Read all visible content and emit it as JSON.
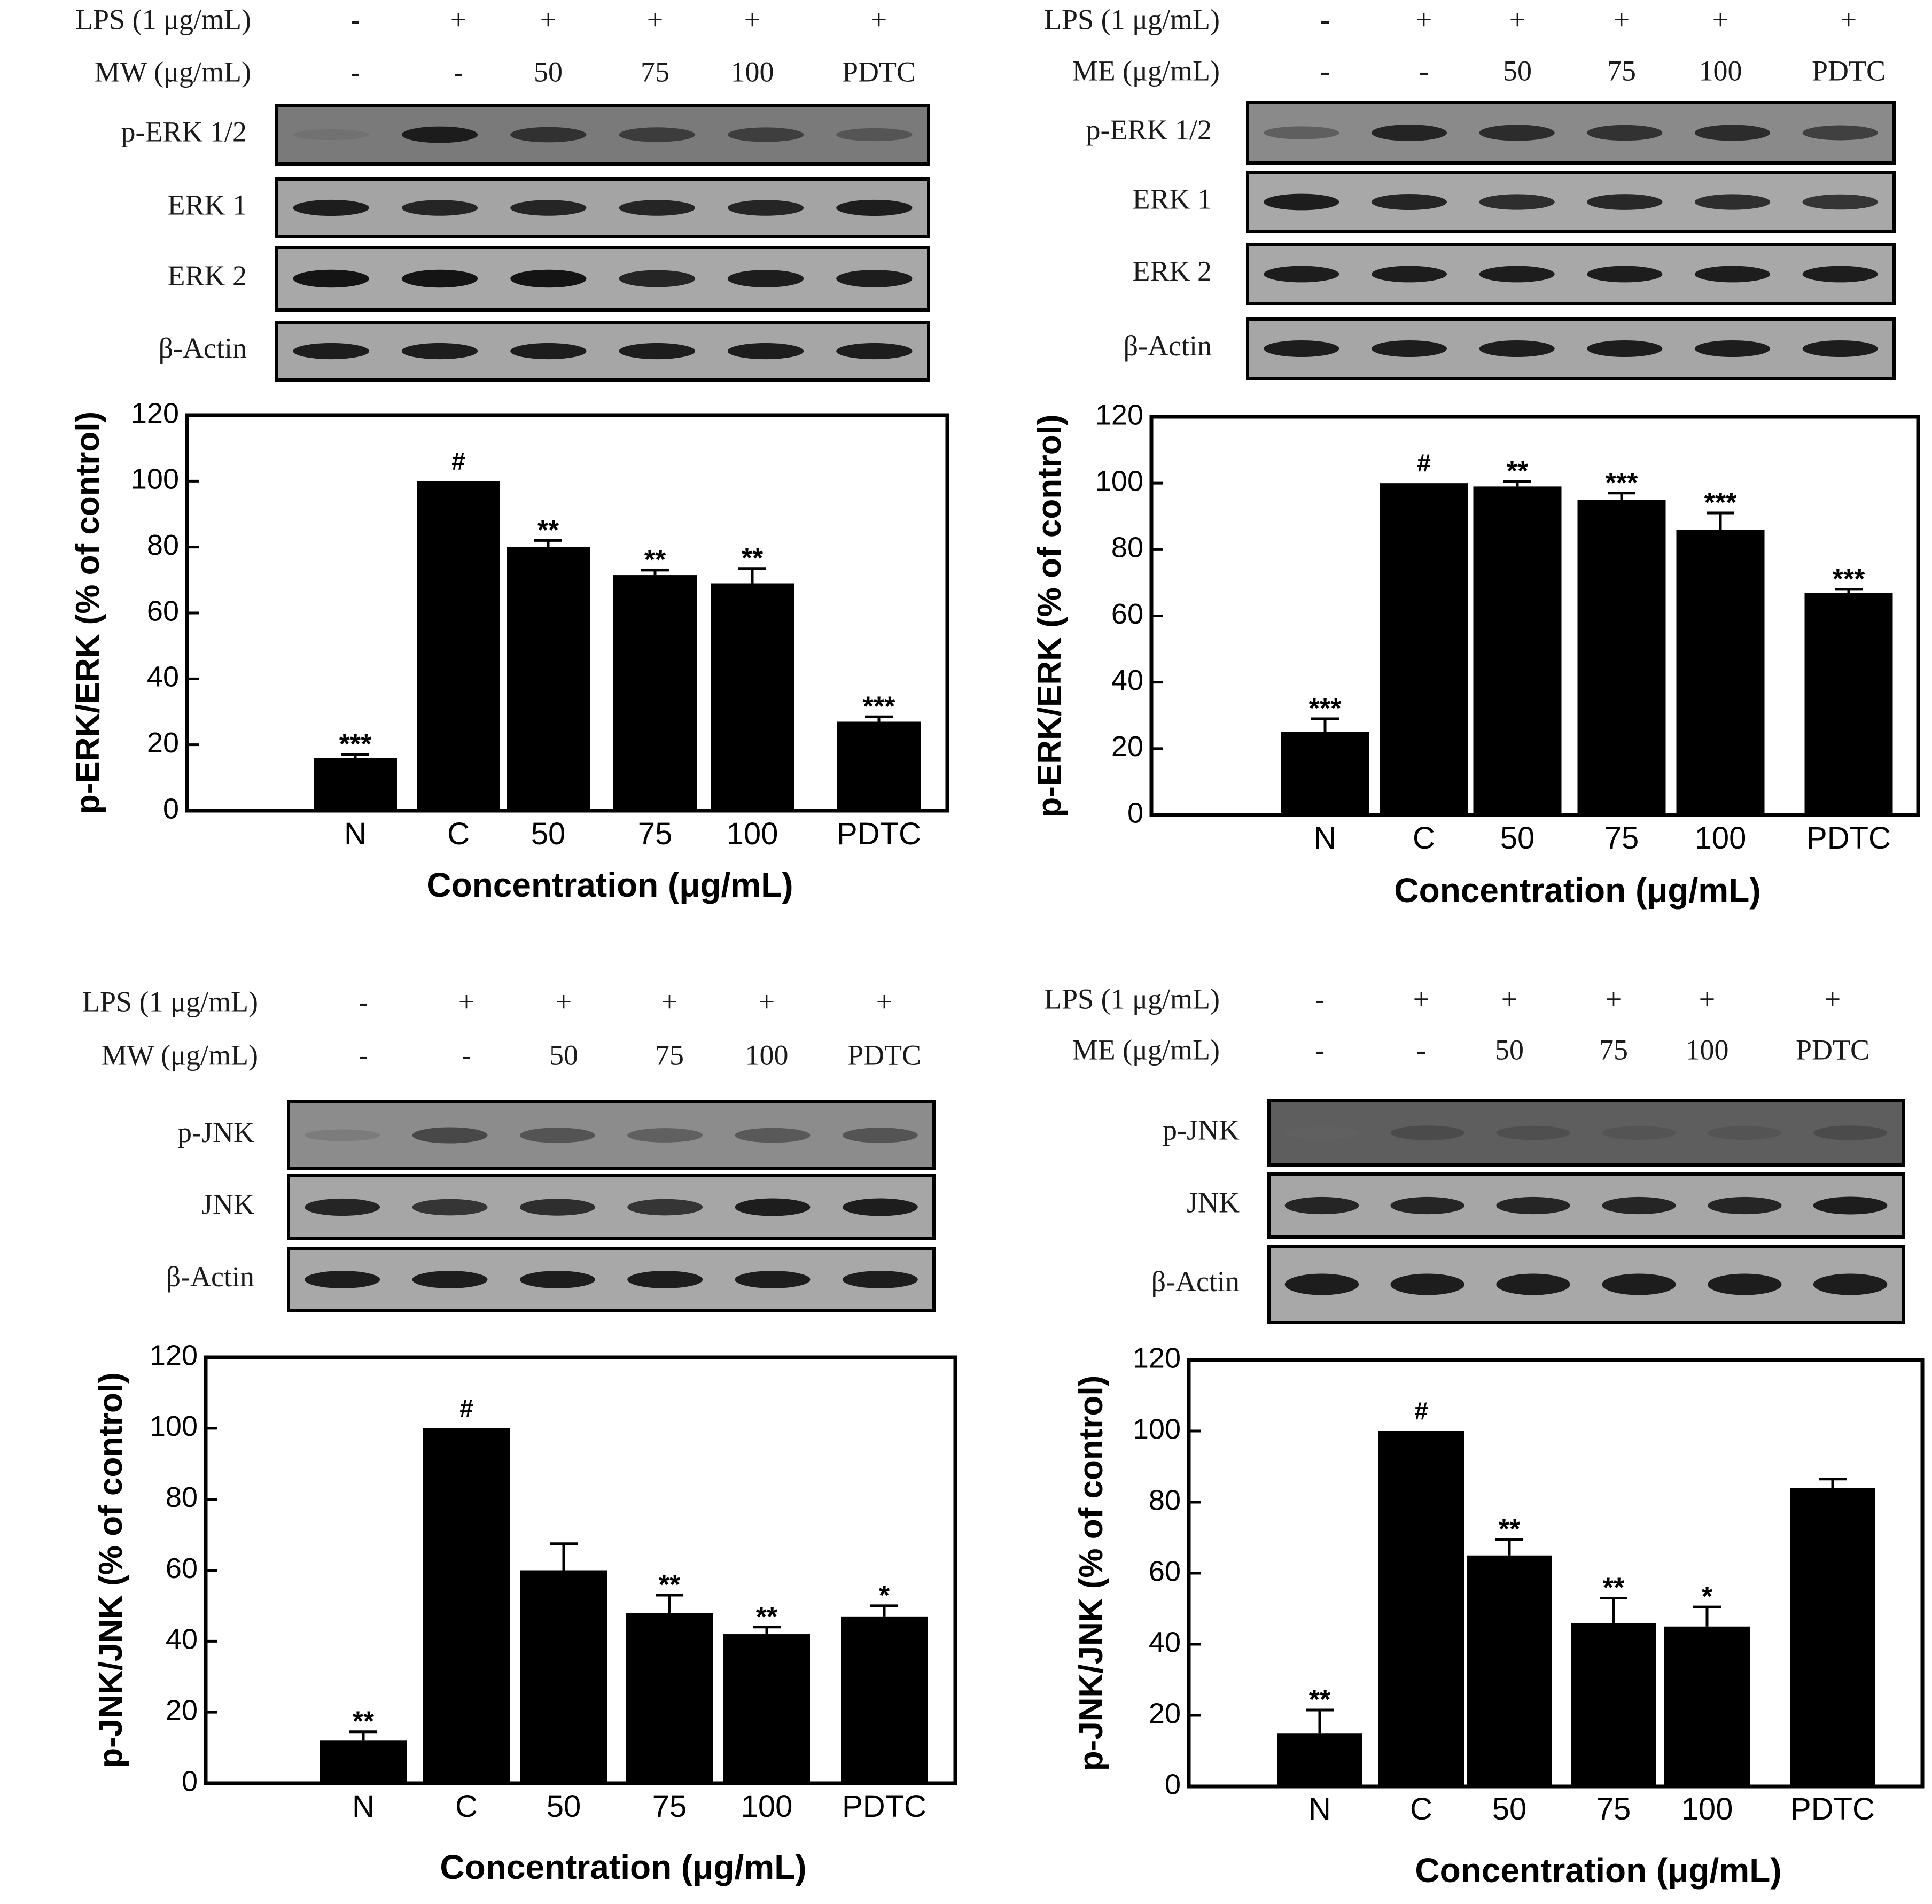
{
  "panels": [
    {
      "id": "mw-erk",
      "treatment_rows": [
        {
          "label": "LPS (1 μg/mL)",
          "values": [
            "-",
            "+",
            "+",
            "+",
            "+",
            "+"
          ]
        },
        {
          "label": "MW (μg/mL)",
          "values": [
            "-",
            "-",
            "50",
            "75",
            "100",
            "PDTC"
          ]
        }
      ],
      "blot_rows": [
        "p-ERK 1/2",
        "ERK 1",
        "ERK 2",
        "β-Actin"
      ],
      "blot_intensity": [
        [
          0.2,
          0.95,
          0.8,
          0.72,
          0.7,
          0.5
        ],
        [
          0.95,
          0.9,
          0.9,
          0.9,
          0.9,
          0.95
        ],
        [
          1,
          1,
          1,
          0.9,
          0.95,
          0.95
        ],
        [
          0.95,
          0.95,
          0.95,
          0.95,
          0.95,
          0.95
        ]
      ],
      "blot_background": [
        "#7a7a7a",
        "#a4a4a4",
        "#a8a8a8",
        "#a6a6a6"
      ],
      "chart_data": {
        "type": "bar",
        "categories": [
          "N",
          "C",
          "50",
          "75",
          "100",
          "PDTC"
        ],
        "values": [
          16,
          100,
          80,
          71.5,
          69,
          27
        ],
        "errors": [
          1,
          0,
          2,
          1.5,
          4.5,
          1.5
        ],
        "annotations": [
          "***",
          "#",
          "**",
          "**",
          "**",
          "***"
        ],
        "xlabel": "Concentration (μg/mL)",
        "ylabel": "p-ERK/ERK (% of control)",
        "ylim": [
          0,
          120
        ],
        "yticks": [
          "0",
          "20",
          "40",
          "60",
          "80",
          "100",
          "120"
        ]
      }
    },
    {
      "id": "me-erk",
      "treatment_rows": [
        {
          "label": "LPS (1 μg/mL)",
          "values": [
            "-",
            "+",
            "+",
            "+",
            "+",
            "+"
          ]
        },
        {
          "label": "ME  (μg/mL)",
          "values": [
            "-",
            "-",
            "50",
            "75",
            "100",
            "PDTC"
          ]
        }
      ],
      "blot_rows": [
        "p-ERK 1/2",
        "ERK 1",
        "ERK 2",
        "β-Actin"
      ],
      "blot_intensity": [
        [
          0.45,
          0.9,
          0.85,
          0.8,
          0.85,
          0.7
        ],
        [
          0.95,
          0.9,
          0.85,
          0.88,
          0.85,
          0.8
        ],
        [
          0.95,
          0.95,
          0.95,
          0.95,
          0.95,
          0.95
        ],
        [
          0.95,
          0.95,
          0.95,
          0.95,
          0.95,
          0.95
        ]
      ],
      "blot_background": [
        "#8a8a8a",
        "#a8a8a8",
        "#a8a8a8",
        "#a6a6a6"
      ],
      "chart_data": {
        "type": "bar",
        "categories": [
          "N",
          "C",
          "50",
          "75",
          "100",
          "PDTC"
        ],
        "values": [
          25,
          100,
          99,
          95,
          86,
          67
        ],
        "errors": [
          4,
          0,
          1.5,
          2,
          5,
          1
        ],
        "annotations": [
          "***",
          "#",
          "**",
          "***",
          "***",
          "***"
        ],
        "xlabel": "Concentration (μg/mL)",
        "ylabel": "p-ERK/ERK (% of control)",
        "ylim": [
          0,
          120
        ],
        "yticks": [
          "0",
          "20",
          "40",
          "60",
          "80",
          "100",
          "120"
        ]
      }
    },
    {
      "id": "mw-jnk",
      "treatment_rows": [
        {
          "label": "LPS (1 μg/mL)",
          "values": [
            "-",
            "+",
            "+",
            "+",
            "+",
            "+"
          ]
        },
        {
          "label": "MW (μg/mL)",
          "values": [
            "-",
            "-",
            "50",
            "75",
            "100",
            "PDTC"
          ]
        }
      ],
      "blot_rows": [
        "p-JNK",
        "JNK",
        "β-Actin"
      ],
      "blot_intensity": [
        [
          0.15,
          0.65,
          0.55,
          0.45,
          0.5,
          0.55
        ],
        [
          0.9,
          0.8,
          0.85,
          0.8,
          0.95,
          0.95
        ],
        [
          0.95,
          0.95,
          0.95,
          0.95,
          0.95,
          0.95
        ]
      ],
      "blot_background": [
        "#8c8c8c",
        "#a6a6a6",
        "#a8a8a8"
      ],
      "chart_data": {
        "type": "bar",
        "categories": [
          "N",
          "C",
          "50",
          "75",
          "100",
          "PDTC"
        ],
        "values": [
          12,
          100,
          60,
          48,
          42,
          47
        ],
        "errors": [
          2.5,
          0,
          7.5,
          5,
          2,
          3
        ],
        "annotations": [
          "**",
          "#",
          "",
          "**",
          "**",
          "*"
        ],
        "xlabel": "Concentration (μg/mL)",
        "ylabel": "p-JNK/JNK (% of control)",
        "ylim": [
          0,
          120
        ],
        "yticks": [
          "0",
          "20",
          "40",
          "60",
          "80",
          "100",
          "120"
        ]
      }
    },
    {
      "id": "me-jnk",
      "treatment_rows": [
        {
          "label": "LPS (1 μg/mL)",
          "values": [
            "-",
            "+",
            "+",
            "+",
            "+",
            "+"
          ]
        },
        {
          "label": "ME  (μg/mL)",
          "values": [
            "-",
            "-",
            "50",
            "75",
            "100",
            "PDTC"
          ]
        }
      ],
      "blot_rows": [
        "p-JNK",
        "JNK",
        "β-Actin"
      ],
      "blot_intensity": [
        [
          0.3,
          0.55,
          0.5,
          0.45,
          0.45,
          0.55
        ],
        [
          0.9,
          0.9,
          0.9,
          0.9,
          0.9,
          0.95
        ],
        [
          0.95,
          0.95,
          0.95,
          0.95,
          0.95,
          0.95
        ]
      ],
      "blot_background": [
        "#5e5e5e",
        "#a6a6a6",
        "#a8a8a8"
      ],
      "chart_data": {
        "type": "bar",
        "categories": [
          "N",
          "C",
          "50",
          "75",
          "100",
          "PDTC"
        ],
        "values": [
          15,
          100,
          65,
          46,
          45,
          84
        ],
        "errors": [
          6.5,
          0,
          4.5,
          7,
          5.5,
          2.5
        ],
        "annotations": [
          "**",
          "#",
          "**",
          "**",
          "*",
          ""
        ],
        "xlabel": "Concentration (μg/mL)",
        "ylabel": "p-JNK/JNK (% of control)",
        "ylim": [
          0,
          120
        ],
        "yticks": [
          "0",
          "20",
          "40",
          "60",
          "80",
          "100",
          "120"
        ]
      }
    }
  ]
}
